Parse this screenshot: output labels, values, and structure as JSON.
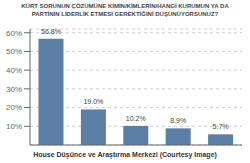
{
  "chart_data": {
    "type": "bar",
    "title": "KÜRT SORUNUN ÇÖZÜMÜNE KİMİN/KİMLERİN/HANGİ KURUMUN YA DA\nPARTİNİN LİDERLİK ETMESİ GEREKTİĞİNİ DÜŞÜNÜYORSUNUZ?",
    "annotations": [
      "House Düşünce ve Araştırma Merkezi (Courtesy Image)"
    ],
    "categories": [
      null,
      null,
      null,
      null,
      null
    ],
    "values": [
      56.8,
      19.0,
      10.2,
      8.9,
      5.7
    ],
    "value_labels": [
      "56.8%",
      "19.0%",
      "10.2%",
      "8.9%",
      "5.7%"
    ],
    "color": "#5b7fa6",
    "ylim": [
      0,
      62
    ],
    "yticks": [
      {
        "value": 10,
        "label": "10%"
      },
      {
        "value": 20,
        "label": "20%"
      },
      {
        "value": 30,
        "label": "30%"
      },
      {
        "value": 40,
        "label": "40%"
      },
      {
        "value": 50,
        "label": "50%"
      },
      {
        "value": 60,
        "label": "60%"
      }
    ],
    "grid": true,
    "data_labels": true,
    "tick_labels": "y"
  }
}
